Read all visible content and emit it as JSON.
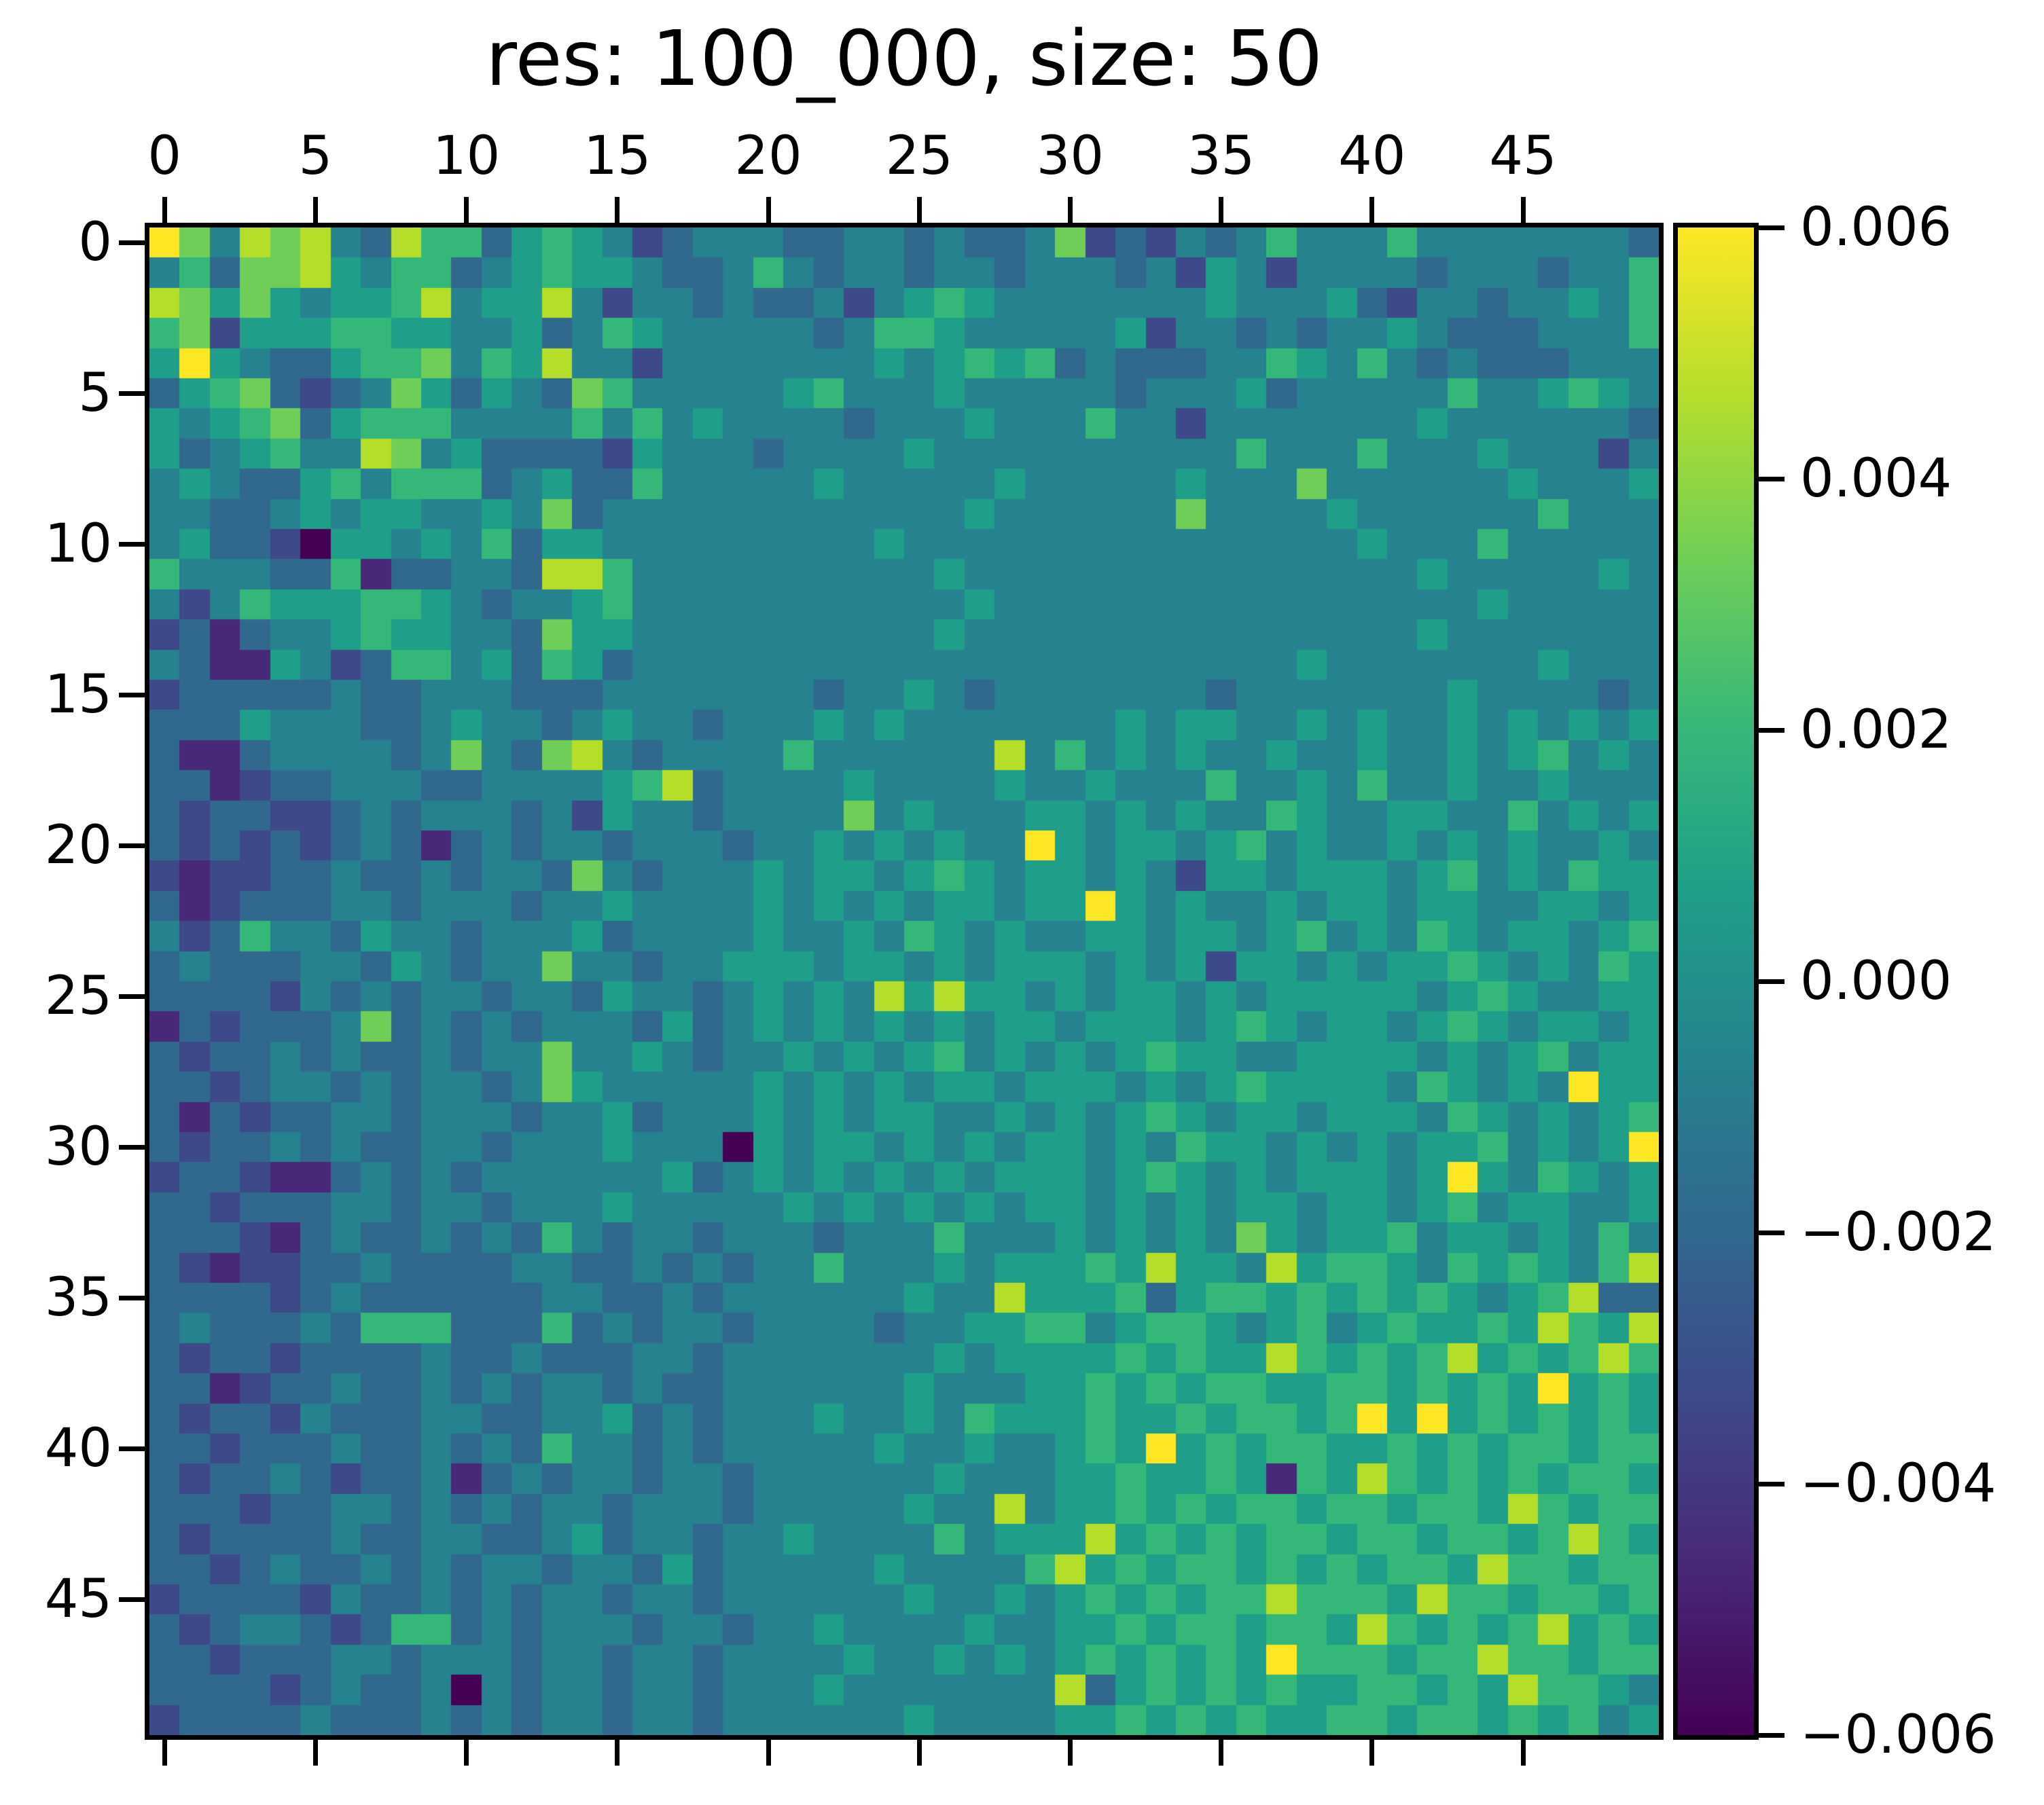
{
  "title": "res: 100_000, size: 50",
  "axes": {
    "x_tick_labels": [
      "0",
      "5",
      "10",
      "15",
      "20",
      "25",
      "30",
      "35",
      "40",
      "45"
    ],
    "y_tick_labels": [
      "0",
      "5",
      "10",
      "15",
      "20",
      "25",
      "30",
      "35",
      "40",
      "45"
    ]
  },
  "colorbar": {
    "tick_labels": [
      "0.006",
      "0.004",
      "0.002",
      "0.000",
      "−0.002",
      "−0.004",
      "−0.006"
    ],
    "vmin": -0.006,
    "vmax": 0.006
  },
  "colors": {
    "viridis_stops": [
      "#440154",
      "#482878",
      "#3e4989",
      "#31688e",
      "#26828e",
      "#1f9e89",
      "#35b779",
      "#6ece58",
      "#b5de2b",
      "#fde725"
    ],
    "axis_color": "#000000",
    "background": "#ffffff"
  },
  "chart_data": {
    "type": "heatmap",
    "title": "res: 100_000, size: 50",
    "rows": 50,
    "cols": 50,
    "x_tick_values": [
      0,
      5,
      10,
      15,
      20,
      25,
      30,
      35,
      40,
      45
    ],
    "y_tick_values": [
      0,
      5,
      10,
      15,
      20,
      25,
      30,
      35,
      40,
      45
    ],
    "vmin": -0.006,
    "vmax": 0.006,
    "colormap": "viridis",
    "legend_position": "right-colorbar",
    "grid": false,
    "value_encoding": "Each row is a 50-character string; digit d (0-9) maps to value = vmin + (d/9)*(vmax-vmin). Estimated from pixel colors.",
    "values_digits": [
      "97487843866356542344433443433472324346444644444443",
      "46377854663456554334643443443444342542444434443446",
      "87575455684558424434334245654444444544453244344546",
      "67255566554453465444443466544444524434344543334446",
      "59543356674658442444444454565634333446546434333444",
      "35673234753543764444456444544444344453444446445654",
      "54567356664444646454444344454446442444444454444443",
      "53456448745333325444344445444444444464446444544424",
      "45433564666345336444445444445444445444744444454445",
      "44334545544547344444444444454444447444454444446444",
      "45332055454635544444444454444444444444445444644444",
      "64443361334438864444444444544444444444444454444454",
      "42465556654344564444444444454444444444444444544444",
      "23134456554437554444444444544444444444444454444444",
      "43115423664536534444444444444444444444544444445444",
      "23333343344433344444443445434444444344444445444434",
      "33354443345443454434445454444444545544545445454545",
      "31134444347437843444464444448464545445445445456454",
      "33123344433444456834444544445445444644546445445444",
      "32332234344434254434444745444554545446544554464545",
      "32323234313434434443445454544954554564544545454454",
      "21223343343443743444545545654554542554555456454655",
      "31233344344434454444545454554559545445455455445545",
      "42364435443444534444544546545445545545645465455456",
      "34333443543447443445554554545554545255454556545465",
      "33332434344344354434545485855454554545555545654455",
      "13233347343434443534545454545545554565455456545545",
      "32334343343447445434454545645454565544555545456455",
      "33234434344347544444545454554555454565555465454955",
      "31323344344434453444545455445454565455455546545456",
      "32334343344344454440545545454554546554545455645459",
      "23321134343444444534545454545554565454555459546545",
      "33233344344344454444454545454554545455455456455445",
      "33321343343436434434443444644454545475455645545464",
      "32122334333344334343446444545556585548566546565468",
      "33332343333334433434444445448555635665656565456833",
      "34333436663336343443444434455664566545645655658658",
      "32332333343343334434444444545555656558656568565686",
      "33123343343434434334444445444556565665566565659565",
      "32332433344334453434445445465556556566569595656565",
      "33233343343436443434444454454456595656655656566566",
      "32334323341343443443444444544455655651658656565665",
      "33323344343434434443444445448455656566566566586566",
      "32333343344334534434454444645558565656656656656865",
      "33234334343443443534444454444685656656565665866566",
      "23333243343434434434444445445456565668666586656656",
      "32344323663434443443445444454455656656658656568565",
      "33233344344434434434444544545456565659666566866566",
      "33332343340434434434445444444483565656556656586654",
      "23333433343434434434444445444455656565566566565645"
    ]
  }
}
